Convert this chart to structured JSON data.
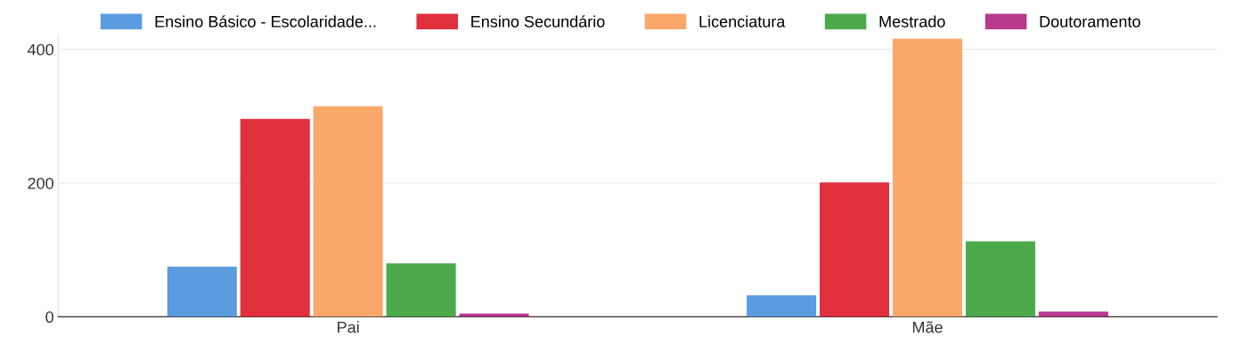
{
  "chart_data": {
    "type": "bar",
    "categories": [
      "Pai",
      "Mãe"
    ],
    "series": [
      {
        "name": "Ensino Básico - Escolaridade...",
        "color": "#5b9be0",
        "values": [
          75,
          32
        ]
      },
      {
        "name": "Ensino Secundário",
        "color": "#e0303e",
        "values": [
          296,
          201
        ]
      },
      {
        "name": "Licenciatura",
        "color": "#f9a86a",
        "values": [
          315,
          416
        ]
      },
      {
        "name": "Mestrado",
        "color": "#4caa4c",
        "values": [
          80,
          113
        ]
      },
      {
        "name": "Doutoramento",
        "color": "#b8388e",
        "values": [
          5,
          8
        ]
      }
    ],
    "ylim": [
      0,
      420
    ],
    "yticks": [
      0,
      200,
      400
    ],
    "grid": "y",
    "legend": "top"
  }
}
